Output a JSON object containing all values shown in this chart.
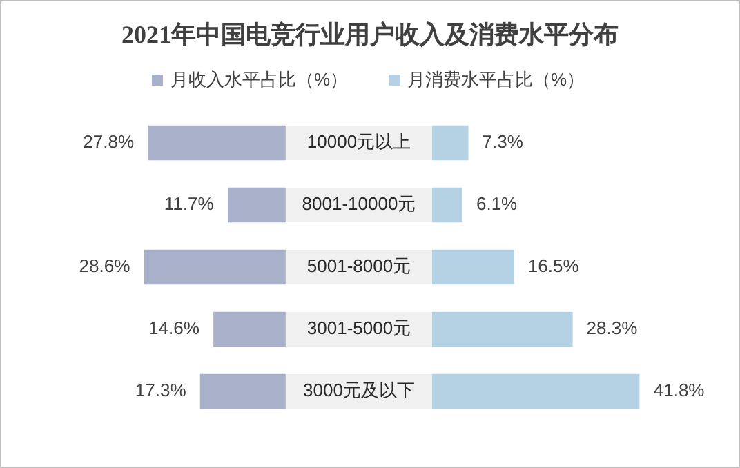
{
  "chart_data": [
    {
      "type": "bar",
      "orientation": "horizontal",
      "title": "2021年中国电竞行业用户收入及消费水平分布",
      "categories": [
        "10000元以上",
        "8001-10000元",
        "5001-8000元",
        "3001-5000元",
        "3000元及以下"
      ],
      "legend": "top",
      "series": [
        {
          "name": "月收入水平占比（%）",
          "color": "#a9b0ca",
          "values": [
            27.8,
            11.7,
            28.6,
            14.6,
            17.3
          ],
          "value_labels": [
            "27.8%",
            "11.7%",
            "28.6%",
            "14.6%",
            "17.3%"
          ]
        }
      ]
    },
    {
      "type": "bar",
      "orientation": "horizontal",
      "categories": [
        null,
        null,
        null,
        null,
        null
      ],
      "legend": "top",
      "series": [
        {
          "name": "月消费水平占比（%）",
          "color": "#b5d1e4",
          "values": [
            7.3,
            6.1,
            16.5,
            28.3,
            41.8
          ],
          "value_labels": [
            "7.3%",
            "6.1%",
            "16.5%",
            "28.3%",
            "41.8%"
          ]
        }
      ]
    }
  ]
}
